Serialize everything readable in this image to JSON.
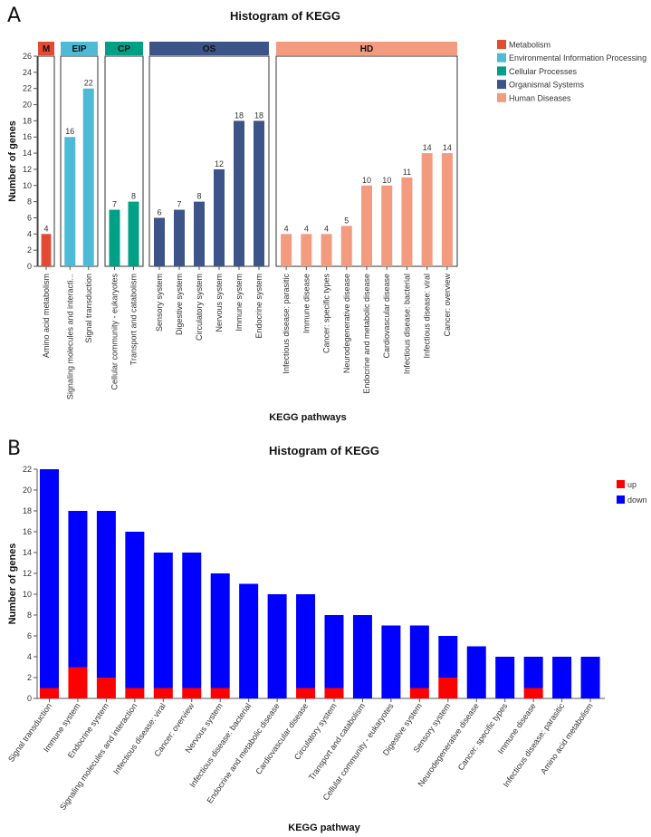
{
  "chart_data": [
    {
      "panel": "A",
      "type": "bar",
      "title": "Histogram of KEGG",
      "xlabel": "KEGG pathways",
      "ylabel": "Number of genes",
      "ylim": [
        0,
        26
      ],
      "yticks": [
        0,
        2,
        4,
        6,
        8,
        10,
        12,
        14,
        16,
        18,
        20,
        22,
        24,
        26
      ],
      "grid": false,
      "legend_position": "top-right",
      "groups": [
        {
          "abbr": "M",
          "name": "Metabolism",
          "color": "#E24A33",
          "categories": [
            "Amino acid metabolism"
          ],
          "values": [
            4
          ]
        },
        {
          "abbr": "EIP",
          "name": "Environmental Information Processing",
          "color": "#4DBBD5",
          "categories": [
            "Signaling molecules and interacti...",
            "Signal transduction"
          ],
          "values": [
            16,
            22
          ]
        },
        {
          "abbr": "CP",
          "name": "Cellular Processes",
          "color": "#00A087",
          "categories": [
            "Cellular community - eukaryotes",
            "Transport and catabolism"
          ],
          "values": [
            7,
            8
          ]
        },
        {
          "abbr": "OS",
          "name": "Organismal Systems",
          "color": "#3C5488",
          "categories": [
            "Sensory system",
            "Digestive system",
            "Circulatory system",
            "Nervous system",
            "Immune system",
            "Endocrine system"
          ],
          "values": [
            6,
            7,
            8,
            12,
            18,
            18
          ]
        },
        {
          "abbr": "HD",
          "name": "Human Diseases",
          "color": "#F39B7F",
          "categories": [
            "Infectious disease: parasitic",
            "Immune disease",
            "Cancer: specific types",
            "Neurodegenerative disease",
            "Endocrine and metabolic disease",
            "Cardiovascular disease",
            "Infectious disease: bacterial",
            "Infectious disease: viral",
            "Cancer: overview"
          ],
          "values": [
            4,
            4,
            4,
            5,
            10,
            10,
            11,
            14,
            14
          ]
        }
      ]
    },
    {
      "panel": "B",
      "type": "bar",
      "stacked": true,
      "title": "Histogram of KEGG",
      "xlabel": "KEGG pathway",
      "ylabel": "Number of genes",
      "ylim": [
        0,
        22
      ],
      "yticks": [
        0,
        2,
        4,
        6,
        8,
        10,
        12,
        14,
        16,
        18,
        20,
        22
      ],
      "grid": false,
      "legend_position": "top-right",
      "categories": [
        "Signal transduction",
        "Immune system",
        "Endocrine system",
        "Signaling molecules and interaction",
        "Infectious disease: viral",
        "Cancer: overview",
        "Nervous system",
        "Infectious disease: bacterial",
        "Endocrine and metabolic disease",
        "Cardiovascular disease",
        "Circulatory system",
        "Transport and catabolism",
        "Cellular community - eukaryotes",
        "Digestive system",
        "Sensory system",
        "Neurodegenerative disease",
        "Cancer: specific types",
        "Immune disease",
        "Infectious disease: parasitic",
        "Amino acid metabolism"
      ],
      "series": [
        {
          "name": "up",
          "color": "#FF0000",
          "values": [
            1,
            3,
            2,
            1,
            1,
            1,
            1,
            0,
            0,
            1,
            1,
            0,
            0,
            1,
            2,
            0,
            0,
            1,
            0,
            0
          ]
        },
        {
          "name": "down",
          "color": "#0000FF",
          "values": [
            21,
            15,
            16,
            15,
            13,
            13,
            11,
            11,
            10,
            9,
            7,
            8,
            7,
            6,
            4,
            5,
            4,
            3,
            4,
            4
          ]
        }
      ],
      "totals": [
        22,
        18,
        18,
        16,
        14,
        14,
        12,
        11,
        10,
        10,
        8,
        8,
        7,
        7,
        6,
        5,
        4,
        4,
        4,
        4
      ]
    }
  ],
  "panel_labels": {
    "a": "A",
    "b": "B"
  }
}
